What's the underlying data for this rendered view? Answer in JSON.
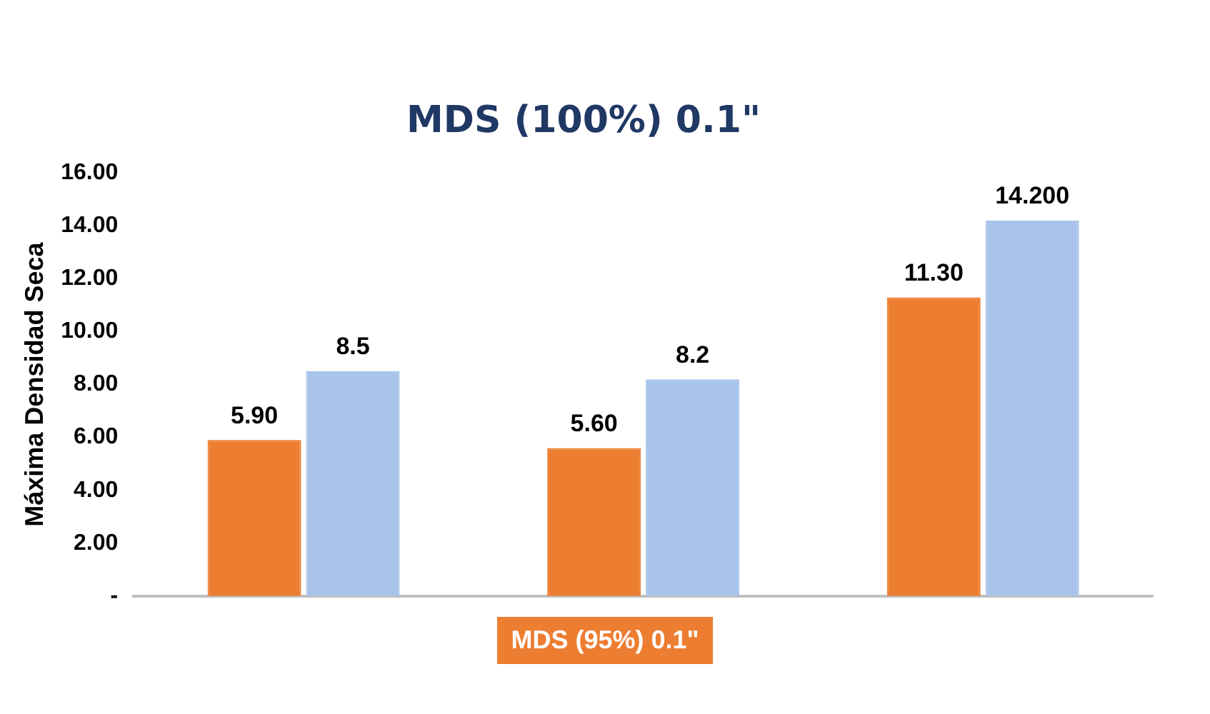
{
  "chart_data": {
    "type": "bar",
    "title": "MDS (100%) 0.1\"",
    "xlabel": "MDS (95%) 0.1\"",
    "ylabel": "Máxima Densidad Seca",
    "categories": [
      null,
      null,
      null
    ],
    "series": [
      {
        "color": "#ed7d31",
        "values": [
          5.9,
          5.6,
          11.3
        ],
        "value_labels": [
          "5.90",
          "5.60",
          "11.30"
        ]
      },
      {
        "color": "#a9c4eb",
        "values": [
          8.5,
          8.2,
          14.2
        ],
        "value_labels": [
          "8.5",
          "8.2",
          "14.200"
        ]
      }
    ],
    "ylim": [
      0,
      16
    ],
    "yticks": [
      {
        "value": 0,
        "label": "-"
      },
      {
        "value": 2,
        "label": "2.00"
      },
      {
        "value": 4,
        "label": "4.00"
      },
      {
        "value": 6,
        "label": "6.00"
      },
      {
        "value": 8,
        "label": "8.00"
      },
      {
        "value": 10,
        "label": "10.00"
      },
      {
        "value": 12,
        "label": "12.00"
      },
      {
        "value": 14,
        "label": "14.00"
      },
      {
        "value": 16,
        "label": "16.00"
      }
    ],
    "grid": false,
    "legend": false
  }
}
